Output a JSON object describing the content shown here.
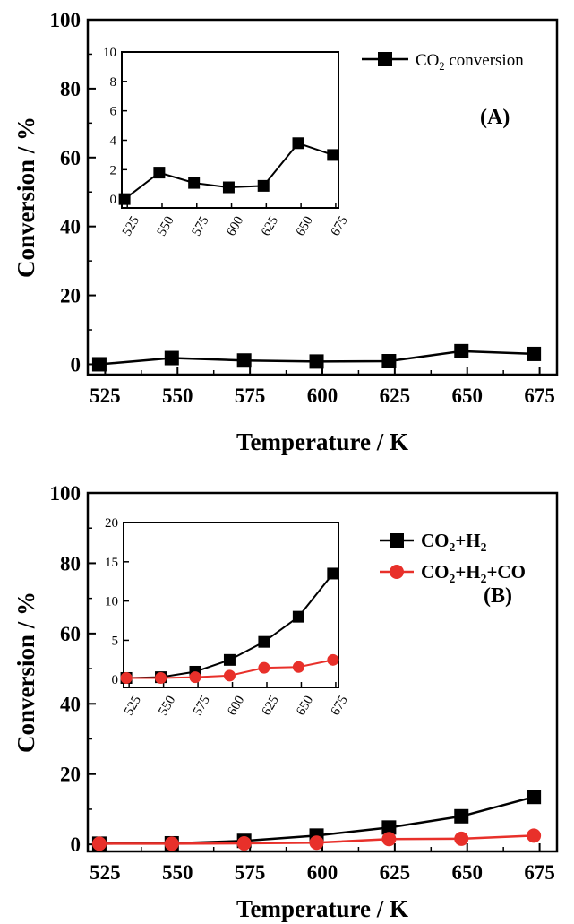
{
  "chart_data": [
    {
      "type": "line",
      "panel_label": "(A)",
      "xlabel": "Temperature / K",
      "ylabel": "Conversion / %",
      "ylim": [
        -3,
        100
      ],
      "xlim": [
        519,
        681
      ],
      "x_ticks": [
        525,
        550,
        575,
        600,
        625,
        650,
        675
      ],
      "y_ticks": [
        0,
        20,
        40,
        60,
        80,
        100
      ],
      "legend": "top-right",
      "grid": false,
      "series": [
        {
          "name_prefix": "CO",
          "name_sub": "2",
          "name_suffix": " conversion",
          "color": "#000000",
          "marker": "square",
          "x": [
            523,
            548,
            573,
            598,
            623,
            648,
            673
          ],
          "values": [
            0,
            1.8,
            1.1,
            0.8,
            0.9,
            3.8,
            3.0
          ]
        }
      ],
      "inset": {
        "xlim": [
          521,
          677
        ],
        "ylim": [
          -0.6,
          10
        ],
        "x_ticks": [
          525,
          550,
          575,
          600,
          625,
          650,
          675
        ],
        "y_ticks": [
          0,
          2,
          4,
          6,
          8,
          10
        ]
      }
    },
    {
      "type": "line",
      "panel_label": "(B)",
      "xlabel": "Temperature / K",
      "ylabel": "Conversion / %",
      "ylim": [
        -2,
        100
      ],
      "xlim": [
        519,
        681
      ],
      "x_ticks": [
        525,
        550,
        575,
        600,
        625,
        650,
        675
      ],
      "y_ticks": [
        0,
        20,
        40,
        60,
        80,
        100
      ],
      "legend": "top-right",
      "grid": false,
      "series": [
        {
          "name_parts": [
            [
              "CO",
              ""
            ],
            [
              "2",
              "sub"
            ],
            [
              "+H",
              ""
            ],
            [
              "2",
              "sub"
            ]
          ],
          "color": "#000000",
          "marker": "square",
          "x": [
            523,
            548,
            573,
            598,
            623,
            648,
            673
          ],
          "values": [
            0.2,
            0.3,
            1.0,
            2.5,
            4.8,
            8.0,
            13.5
          ]
        },
        {
          "name_parts": [
            [
              "CO",
              ""
            ],
            [
              "2",
              "sub"
            ],
            [
              "+H",
              ""
            ],
            [
              "2",
              "sub"
            ],
            [
              "+CO",
              ""
            ]
          ],
          "color": "#e8302a",
          "marker": "circle",
          "x": [
            523,
            548,
            573,
            598,
            623,
            648,
            673
          ],
          "values": [
            0.2,
            0.2,
            0.3,
            0.5,
            1.5,
            1.6,
            2.5
          ]
        }
      ],
      "inset": {
        "xlim": [
          521,
          677
        ],
        "ylim": [
          -1,
          20
        ],
        "x_ticks": [
          525,
          550,
          575,
          600,
          625,
          650,
          675
        ],
        "y_ticks": [
          0,
          5,
          10,
          15,
          20
        ]
      }
    }
  ]
}
